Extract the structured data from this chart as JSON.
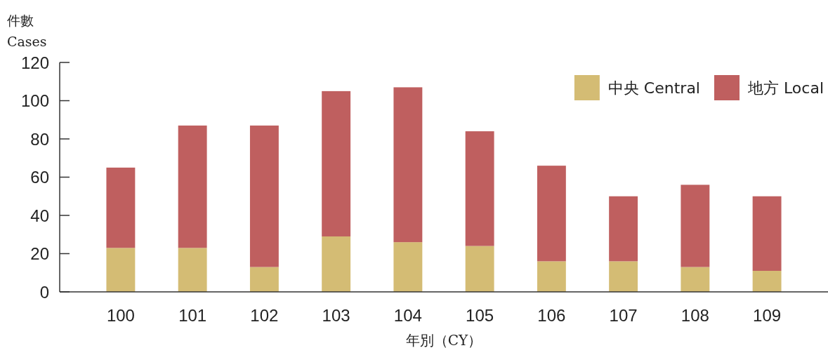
{
  "chart_data": {
    "type": "bar",
    "stacked": true,
    "xlabel": "年別（CY）",
    "ylabel": "件數 Cases",
    "categories": [
      "100",
      "101",
      "102",
      "103",
      "104",
      "105",
      "106",
      "107",
      "108",
      "109"
    ],
    "series": [
      {
        "name": "中央 Central",
        "color": "#d4bc74",
        "values": [
          23,
          23,
          13,
          29,
          26,
          24,
          16,
          16,
          13,
          11
        ]
      },
      {
        "name": "地方 Local",
        "color": "#bf5f5f",
        "values": [
          42,
          64,
          74,
          76,
          81,
          60,
          50,
          34,
          43,
          39
        ]
      }
    ],
    "ylim": [
      0,
      120
    ],
    "yticks": [
      0,
      20,
      40,
      60,
      80,
      100,
      120
    ],
    "legend": "top right",
    "grid": false
  }
}
